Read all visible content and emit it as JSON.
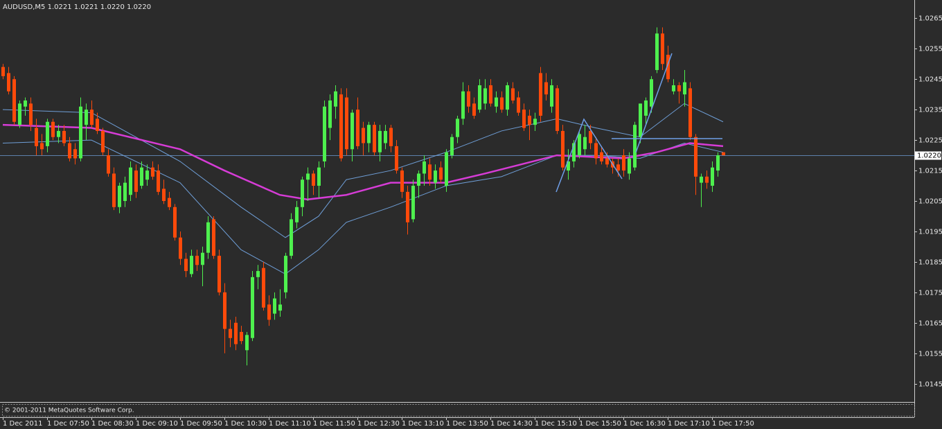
{
  "chart_data": {
    "type": "candlestick",
    "title": "AUDUSD,M5  1.0221 1.0221 1.0220 1.0220",
    "footer": "© 2001-2011 MetaQuotes Software Corp.",
    "bull_color": "#4ef04e",
    "bear_color": "#ff4a0a",
    "ylim": [
      1.0139,
      1.0271
    ],
    "yticks": [
      1.0265,
      1.0255,
      1.0245,
      1.0235,
      1.0225,
      1.0215,
      1.0205,
      1.0195,
      1.0185,
      1.0175,
      1.0165,
      1.0155,
      1.0145
    ],
    "price_line": {
      "value": 1.022,
      "label": "1.0220"
    },
    "categories": [
      "1 Dec 2011",
      null,
      null,
      null,
      null,
      null,
      null,
      null,
      "1 Dec 07:50",
      null,
      null,
      null,
      null,
      null,
      null,
      null,
      "1 Dec 08:30",
      null,
      null,
      null,
      null,
      null,
      null,
      null,
      "1 Dec 09:10",
      null,
      null,
      null,
      null,
      null,
      null,
      null,
      "1 Dec 09:50",
      null,
      null,
      null,
      null,
      null,
      null,
      null,
      "1 Dec 10:30",
      null,
      null,
      null,
      null,
      null,
      null,
      null,
      "1 Dec 11:10",
      null,
      null,
      null,
      null,
      null,
      null,
      null,
      "1 Dec 11:50",
      null,
      null,
      null,
      null,
      null,
      null,
      null,
      "1 Dec 12:30",
      null,
      null,
      null,
      null,
      null,
      null,
      null,
      "1 Dec 13:10",
      null,
      null,
      null,
      null,
      null,
      null,
      null,
      "1 Dec 13:50",
      null,
      null,
      null,
      null,
      null,
      null,
      null,
      "1 Dec 14:30",
      null,
      null,
      null,
      null,
      null,
      null,
      null,
      "1 Dec 15:10",
      null,
      null,
      null,
      null,
      null,
      null,
      null,
      "1 Dec 15:50",
      null,
      null,
      null,
      null,
      null,
      null,
      null,
      "1 Dec 16:30",
      null,
      null,
      null,
      null,
      null,
      null,
      null,
      "1 Dec 17:10",
      null,
      null,
      null,
      null,
      null,
      null,
      null,
      "1 Dec 17:50",
      null,
      null
    ],
    "ohlc": [
      [
        1.0249,
        1.025,
        1.0245,
        1.0246
      ],
      [
        1.0247,
        1.0249,
        1.024,
        1.0241
      ],
      [
        1.0245,
        1.0246,
        1.023,
        1.0231
      ],
      [
        1.023,
        1.0238,
        1.0229,
        1.0237
      ],
      [
        1.0236,
        1.0239,
        1.0233,
        1.0238
      ],
      [
        1.0237,
        1.0239,
        1.0228,
        1.023
      ],
      [
        1.0229,
        1.0232,
        1.022,
        1.0223
      ],
      [
        1.0224,
        1.0227,
        1.022,
        1.0222
      ],
      [
        1.0223,
        1.0232,
        1.0221,
        1.0231
      ],
      [
        1.0231,
        1.0232,
        1.0225,
        1.0226
      ],
      [
        1.0226,
        1.023,
        1.0224,
        1.0228
      ],
      [
        1.0228,
        1.023,
        1.0223,
        1.0224
      ],
      [
        1.0224,
        1.0226,
        1.0218,
        1.0219
      ],
      [
        1.0222,
        1.0224,
        1.0217,
        1.0219
      ],
      [
        1.0219,
        1.0239,
        1.0218,
        1.0236
      ],
      [
        1.023,
        1.0237,
        1.0225,
        1.0235
      ],
      [
        1.0235,
        1.0238,
        1.0229,
        1.023
      ],
      [
        1.0232,
        1.0234,
        1.0227,
        1.0228
      ],
      [
        1.0228,
        1.0229,
        1.022,
        1.0221
      ],
      [
        1.022,
        1.0222,
        1.0213,
        1.0214
      ],
      [
        1.0214,
        1.0216,
        1.0202,
        1.0203
      ],
      [
        1.0203,
        1.0211,
        1.0201,
        1.021
      ],
      [
        1.0205,
        1.0213,
        1.0203,
        1.0211
      ],
      [
        1.0207,
        1.0218,
        1.0205,
        1.0216
      ],
      [
        1.0215,
        1.0217,
        1.0206,
        1.0208
      ],
      [
        1.021,
        1.0218,
        1.0209,
        1.0216
      ],
      [
        1.0212,
        1.0217,
        1.021,
        1.0215
      ],
      [
        1.0216,
        1.0218,
        1.0212,
        1.0213
      ],
      [
        1.0215,
        1.0217,
        1.0207,
        1.0208
      ],
      [
        1.0209,
        1.0212,
        1.0204,
        1.0205
      ],
      [
        1.0206,
        1.0208,
        1.0202,
        1.0203
      ],
      [
        1.0203,
        1.0204,
        1.0192,
        1.0193
      ],
      [
        1.0193,
        1.0195,
        1.0184,
        1.0186
      ],
      [
        1.0186,
        1.0188,
        1.018,
        1.0182
      ],
      [
        1.0181,
        1.0189,
        1.018,
        1.0187
      ],
      [
        1.0187,
        1.0189,
        1.0182,
        1.0184
      ],
      [
        1.0184,
        1.019,
        1.0177,
        1.0188
      ],
      [
        1.0188,
        1.02,
        1.0186,
        1.0198
      ],
      [
        1.0199,
        1.02,
        1.0186,
        1.0187
      ],
      [
        1.0187,
        1.0189,
        1.0174,
        1.0175
      ],
      [
        1.0175,
        1.0178,
        1.0155,
        1.0163
      ],
      [
        1.0163,
        1.0166,
        1.0157,
        1.016
      ],
      [
        1.0165,
        1.0167,
        1.0156,
        1.0158
      ],
      [
        1.0162,
        1.0164,
        1.0158,
        1.0159
      ],
      [
        1.0156,
        1.0162,
        1.0151,
        1.0161
      ],
      [
        1.016,
        1.0182,
        1.0159,
        1.018
      ],
      [
        1.018,
        1.0184,
        1.0176,
        1.0182
      ],
      [
        1.0183,
        1.0185,
        1.0169,
        1.017
      ],
      [
        1.0171,
        1.0174,
        1.0164,
        1.0166
      ],
      [
        1.0168,
        1.0175,
        1.0166,
        1.0173
      ],
      [
        1.0169,
        1.0176,
        1.0167,
        1.0171
      ],
      [
        1.0175,
        1.0188,
        1.0173,
        1.0187
      ],
      [
        1.0187,
        1.0201,
        1.0186,
        1.0199
      ],
      [
        1.0198,
        1.0205,
        1.0196,
        1.0203
      ],
      [
        1.0203,
        1.0213,
        1.02,
        1.0212
      ],
      [
        1.0212,
        1.0216,
        1.0205,
        1.0214
      ],
      [
        1.0214,
        1.0215,
        1.0207,
        1.021
      ],
      [
        1.021,
        1.0218,
        1.0206,
        1.0216
      ],
      [
        1.0218,
        1.0238,
        1.0216,
        1.0236
      ],
      [
        1.0229,
        1.024,
        1.0225,
        1.0238
      ],
      [
        1.0236,
        1.0243,
        1.0232,
        1.0241
      ],
      [
        1.024,
        1.0242,
        1.0218,
        1.0219
      ],
      [
        1.0239,
        1.0242,
        1.022,
        1.0222
      ],
      [
        1.0222,
        1.0235,
        1.0218,
        1.0234
      ],
      [
        1.0235,
        1.0239,
        1.0222,
        1.0223
      ],
      [
        1.0229,
        1.0231,
        1.022,
        1.0224
      ],
      [
        1.0224,
        1.0231,
        1.0221,
        1.023
      ],
      [
        1.023,
        1.0231,
        1.022,
        1.0221
      ],
      [
        1.0221,
        1.023,
        1.0218,
        1.0228
      ],
      [
        1.0224,
        1.023,
        1.0222,
        1.0228
      ],
      [
        1.0229,
        1.023,
        1.0221,
        1.0223
      ],
      [
        1.0223,
        1.0225,
        1.0214,
        1.0215
      ],
      [
        1.0215,
        1.0216,
        1.0206,
        1.0208
      ],
      [
        1.0208,
        1.021,
        1.0194,
        1.0198
      ],
      [
        1.0199,
        1.0212,
        1.0198,
        1.021
      ],
      [
        1.021,
        1.0215,
        1.0206,
        1.0214
      ],
      [
        1.0214,
        1.022,
        1.021,
        1.0218
      ],
      [
        1.0217,
        1.0219,
        1.021,
        1.0212
      ],
      [
        1.0211,
        1.0217,
        1.0209,
        1.0215
      ],
      [
        1.0216,
        1.0218,
        1.0211,
        1.0212
      ],
      [
        1.021,
        1.0222,
        1.0208,
        1.0221
      ],
      [
        1.022,
        1.0227,
        1.0219,
        1.0226
      ],
      [
        1.0226,
        1.0233,
        1.0224,
        1.0232
      ],
      [
        1.0232,
        1.0244,
        1.023,
        1.0241
      ],
      [
        1.0241,
        1.0243,
        1.0234,
        1.0236
      ],
      [
        1.0237,
        1.0239,
        1.0232,
        1.0233
      ],
      [
        1.0235,
        1.0245,
        1.0234,
        1.0243
      ],
      [
        1.0237,
        1.0245,
        1.0235,
        1.0242
      ],
      [
        1.0243,
        1.0245,
        1.0236,
        1.0237
      ],
      [
        1.0236,
        1.0241,
        1.0234,
        1.0239
      ],
      [
        1.0239,
        1.0241,
        1.0234,
        1.0235
      ],
      [
        1.0235,
        1.0244,
        1.0233,
        1.0243
      ],
      [
        1.0242,
        1.0244,
        1.0237,
        1.0238
      ],
      [
        1.0239,
        1.0241,
        1.0233,
        1.0234
      ],
      [
        1.0235,
        1.0237,
        1.0228,
        1.0229
      ],
      [
        1.0233,
        1.0235,
        1.0225,
        1.023
      ],
      [
        1.023,
        1.0234,
        1.0228,
        1.0232
      ],
      [
        1.0247,
        1.0249,
        1.0231,
        1.0233
      ],
      [
        1.0244,
        1.0247,
        1.0238,
        1.024
      ],
      [
        1.0236,
        1.0245,
        1.0234,
        1.0243
      ],
      [
        1.0242,
        1.0243,
        1.0227,
        1.0228
      ],
      [
        1.0228,
        1.023,
        1.0215,
        1.0216
      ],
      [
        1.0215,
        1.0222,
        1.0212,
        1.0218
      ],
      [
        1.0218,
        1.0225,
        1.0216,
        1.0224
      ],
      [
        1.022,
        1.0228,
        1.0219,
        1.0227
      ],
      [
        1.0222,
        1.023,
        1.022,
        1.0226
      ],
      [
        1.0228,
        1.023,
        1.0222,
        1.0224
      ],
      [
        1.0224,
        1.0226,
        1.0217,
        1.0219
      ],
      [
        1.0221,
        1.0223,
        1.0217,
        1.0218
      ],
      [
        1.0219,
        1.0221,
        1.0216,
        1.0217
      ],
      [
        1.0218,
        1.0219,
        1.0214,
        1.0216
      ],
      [
        1.0217,
        1.0219,
        1.0213,
        1.0215
      ],
      [
        1.022,
        1.0222,
        1.0213,
        1.0215
      ],
      [
        1.0214,
        1.0221,
        1.0212,
        1.0219
      ],
      [
        1.0216,
        1.0231,
        1.0215,
        1.023
      ],
      [
        1.0226,
        1.0237,
        1.0224,
        1.0237
      ],
      [
        1.0233,
        1.0239,
        1.023,
        1.0238
      ],
      [
        1.0236,
        1.0246,
        1.0234,
        1.0245
      ],
      [
        1.0248,
        1.0262,
        1.0247,
        1.026
      ],
      [
        1.026,
        1.0262,
        1.0248,
        1.025
      ],
      [
        1.0253,
        1.0256,
        1.0244,
        1.0245
      ],
      [
        1.0241,
        1.0245,
        1.024,
        1.0243
      ],
      [
        1.0243,
        1.0244,
        1.0237,
        1.0241
      ],
      [
        1.024,
        1.0248,
        1.0236,
        1.0244
      ],
      [
        1.0242,
        1.0244,
        1.0225,
        1.0226
      ],
      [
        1.0226,
        1.0227,
        1.0207,
        1.0213
      ],
      [
        1.0211,
        1.0214,
        1.0203,
        1.0213
      ],
      [
        1.0213,
        1.0215,
        1.0209,
        1.0211
      ],
      [
        1.021,
        1.0218,
        1.0208,
        1.0216
      ],
      [
        1.0215,
        1.0221,
        1.0213,
        1.022
      ],
      [
        1.0221,
        1.0221,
        1.022,
        1.022
      ]
    ],
    "overlays": [
      {
        "color": "#6f9fd8",
        "x": [
          0,
          16,
          32,
          43,
          51,
          57,
          62,
          70,
          80,
          90,
          100,
          107,
          115,
          123,
          130
        ],
        "values": [
          1.0235,
          1.0234,
          1.0218,
          1.0203,
          1.0193,
          1.02,
          1.0212,
          1.0215,
          1.0221,
          1.0228,
          1.0232,
          1.0229,
          1.0226,
          1.0237,
          1.0231
        ]
      },
      {
        "color": "#6f9fd8",
        "x": [
          0,
          16,
          32,
          43,
          51,
          57,
          62,
          70,
          80,
          90,
          100,
          107,
          115,
          123,
          130
        ],
        "values": [
          1.0224,
          1.0225,
          1.0211,
          1.0189,
          1.0181,
          1.0189,
          1.0198,
          1.0203,
          1.021,
          1.0213,
          1.022,
          1.022,
          1.0219,
          1.0224,
          1.0221
        ]
      },
      {
        "color": "#d63cd6",
        "x": [
          0,
          16,
          32,
          40,
          50,
          55,
          62,
          70,
          80,
          87,
          100,
          112,
          118,
          124,
          130
        ],
        "values": [
          1.023,
          1.0229,
          1.0222,
          1.0215,
          1.0207,
          1.02055,
          1.0207,
          1.0211,
          1.0211,
          1.0214,
          1.022,
          1.0219,
          1.0221,
          1.0224,
          1.0223
        ]
      }
    ]
  }
}
